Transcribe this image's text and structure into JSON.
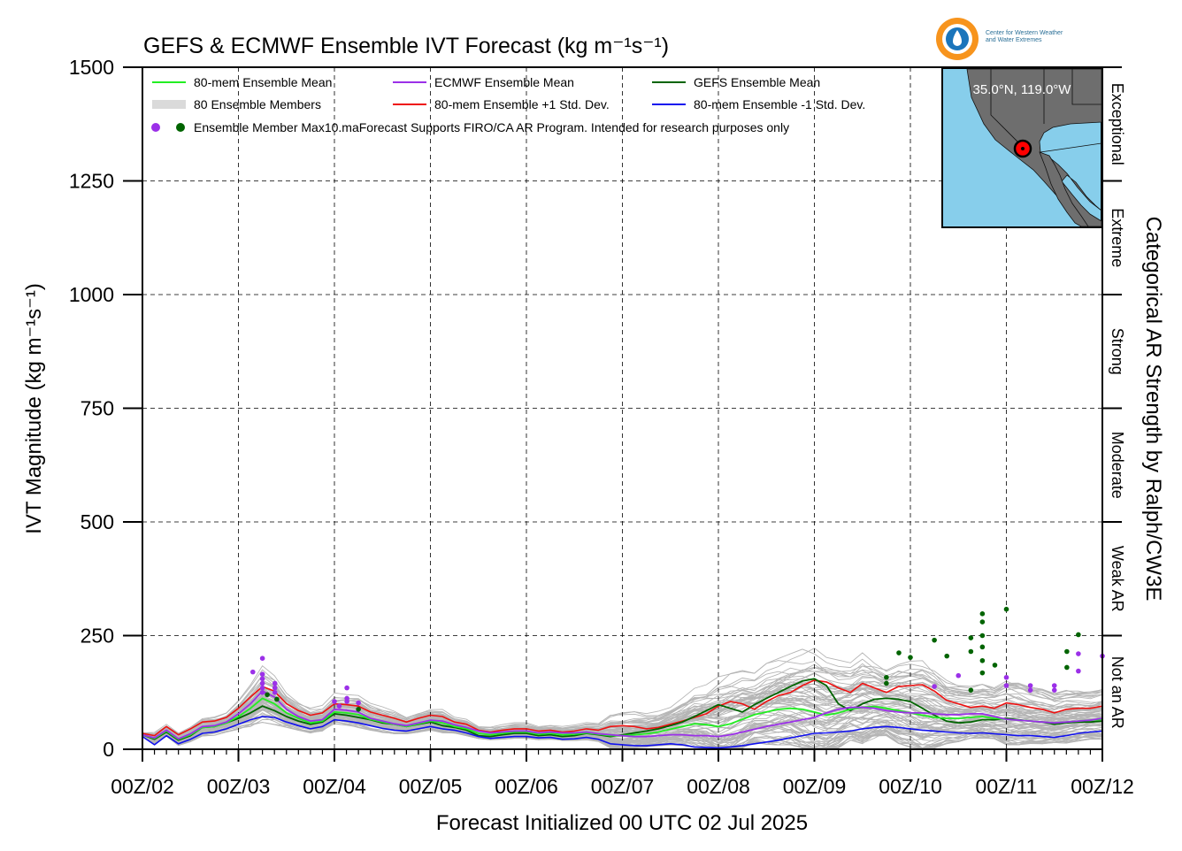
{
  "title": "GEFS & ECMWF Ensemble IVT Forecast (kg m⁻¹s⁻¹)",
  "logo": {
    "line1": "Center for Western Weather",
    "line2": "and Water Extremes"
  },
  "chart_data": {
    "type": "line",
    "title": "GEFS & ECMWF Ensemble IVT Forecast (kg m⁻¹s⁻¹)",
    "xlabel": "Forecast Initialized 00 UTC 02 Jul 2025",
    "ylabel": "IVT Magnitude (kg m⁻¹s⁻¹)",
    "right_label": "Categorical AR Strength by Ralph/CW3E",
    "ylim": [
      0,
      1500
    ],
    "xlim": [
      0,
      10
    ],
    "y_ticks": [
      0,
      250,
      500,
      750,
      1000,
      1250,
      1500
    ],
    "x_ticks": [
      "00Z/02",
      "00Z/03",
      "00Z/04",
      "00Z/05",
      "00Z/06",
      "00Z/07",
      "00Z/08",
      "00Z/09",
      "00Z/10",
      "00Z/11",
      "00Z/12"
    ],
    "grid": true,
    "categories": [
      {
        "label": "Not an AR",
        "from": 0,
        "to": 250
      },
      {
        "label": "Weak AR",
        "from": 250,
        "to": 500
      },
      {
        "label": "Moderate",
        "from": 500,
        "to": 750
      },
      {
        "label": "Strong",
        "from": 750,
        "to": 1000
      },
      {
        "label": "Extreme",
        "from": 1000,
        "to": 1250
      },
      {
        "label": "Exceptional",
        "from": 1250,
        "to": 1500
      }
    ],
    "legend": {
      "placement": "top-left",
      "entries": [
        {
          "label": "80-mem Ensemble Mean",
          "color": "#22ee22"
        },
        {
          "label": "ECMWF Ensemble Mean",
          "color": "#9b30e8"
        },
        {
          "label": "GEFS Ensemble Mean",
          "color": "#006400"
        },
        {
          "label": "80 Ensemble Members",
          "color": "#b5b5b5"
        },
        {
          "label": "80-mem Ensemble +1 Std. Dev.",
          "color": "#ee1111"
        },
        {
          "label": "80-mem Ensemble -1 Std. Dev.",
          "color": "#1010ee"
        }
      ],
      "marker_label": "Ensemble Member Max10.ma",
      "note": "Forecast Supports FIRO/CA AR Program. Intended for research purposes only"
    },
    "inset": {
      "label": "35.0°N, 119.0°W"
    },
    "x": [
      0,
      0.125,
      0.25,
      0.375,
      0.5,
      0.625,
      0.75,
      0.875,
      1,
      1.125,
      1.25,
      1.375,
      1.5,
      1.625,
      1.75,
      1.875,
      2,
      2.125,
      2.25,
      2.375,
      2.5,
      2.625,
      2.75,
      2.875,
      3,
      3.125,
      3.25,
      3.375,
      3.5,
      3.625,
      3.75,
      3.875,
      4,
      4.125,
      4.25,
      4.375,
      4.5,
      4.625,
      4.75,
      4.875,
      5,
      5.125,
      5.25,
      5.375,
      5.5,
      5.625,
      5.75,
      5.875,
      6,
      6.125,
      6.25,
      6.375,
      6.5,
      6.625,
      6.75,
      6.875,
      7,
      7.125,
      7.25,
      7.375,
      7.5,
      7.625,
      7.75,
      7.875,
      8,
      8.125,
      8.25,
      8.375,
      8.5,
      8.625,
      8.75,
      8.875,
      9,
      9.125,
      9.25,
      9.375,
      9.5,
      9.625,
      9.75,
      9.875,
      10
    ],
    "series": [
      {
        "name": "80-mem Ensemble +1 Std. Dev.",
        "color": "#ee1111",
        "width": 1.6,
        "values": [
          35,
          30,
          50,
          32,
          45,
          60,
          62,
          70,
          90,
          115,
          138,
          128,
          100,
          85,
          75,
          80,
          100,
          98,
          95,
          82,
          75,
          68,
          60,
          68,
          75,
          72,
          60,
          55,
          42,
          38,
          42,
          45,
          45,
          40,
          42,
          38,
          40,
          45,
          42,
          50,
          52,
          50,
          45,
          48,
          55,
          62,
          70,
          78,
          95,
          105,
          100,
          88,
          105,
          118,
          125,
          140,
          152,
          148,
          135,
          125,
          145,
          135,
          125,
          138,
          140,
          142,
          128,
          108,
          100,
          92,
          95,
          90,
          102,
          98,
          92,
          88,
          80,
          88,
          90,
          90,
          95
        ]
      },
      {
        "name": "GEFS Ensemble Mean",
        "color": "#006400",
        "width": 1.8,
        "values": [
          32,
          22,
          38,
          20,
          30,
          48,
          50,
          58,
          68,
          80,
          95,
          85,
          72,
          62,
          55,
          60,
          78,
          75,
          70,
          65,
          58,
          55,
          50,
          55,
          60,
          52,
          48,
          42,
          30,
          28,
          32,
          35,
          35,
          30,
          32,
          28,
          30,
          35,
          32,
          28,
          32,
          36,
          40,
          45,
          52,
          60,
          72,
          85,
          98,
          90,
          82,
          98,
          112,
          125,
          138,
          150,
          155,
          140,
          100,
          85,
          100,
          110,
          112,
          110,
          105,
          90,
          75,
          62,
          58,
          60,
          65,
          65,
          68,
          65,
          62,
          60,
          55,
          58,
          60,
          60,
          62
        ]
      },
      {
        "name": "80-mem Ensemble Mean",
        "color": "#22ee22",
        "width": 1.8,
        "values": [
          32,
          24,
          40,
          22,
          32,
          48,
          50,
          58,
          72,
          90,
          112,
          100,
          80,
          68,
          58,
          62,
          82,
          80,
          76,
          66,
          60,
          55,
          50,
          56,
          62,
          58,
          50,
          45,
          35,
          32,
          35,
          38,
          38,
          33,
          35,
          32,
          33,
          36,
          33,
          30,
          30,
          32,
          34,
          38,
          44,
          50,
          56,
          54,
          50,
          56,
          66,
          76,
          82,
          88,
          90,
          88,
          82,
          75,
          80,
          88,
          92,
          94,
          90,
          85,
          80,
          75,
          70,
          68,
          68,
          70,
          72,
          68,
          66,
          64,
          62,
          60,
          58,
          60,
          62,
          64,
          66
        ]
      },
      {
        "name": "ECMWF Ensemble Mean",
        "color": "#9b30e8",
        "width": 1.8,
        "values": [
          32,
          25,
          42,
          23,
          34,
          50,
          52,
          60,
          78,
          100,
          128,
          115,
          88,
          72,
          62,
          65,
          88,
          86,
          82,
          68,
          62,
          56,
          52,
          58,
          64,
          62,
          54,
          48,
          40,
          36,
          38,
          40,
          40,
          36,
          38,
          36,
          36,
          38,
          34,
          32,
          30,
          28,
          28,
          30,
          32,
          32,
          30,
          30,
          28,
          32,
          38,
          44,
          50,
          55,
          60,
          65,
          70,
          80,
          88,
          92,
          92,
          90,
          85,
          82,
          80,
          80,
          78,
          76,
          76,
          78,
          78,
          72,
          66,
          64,
          62,
          60,
          58,
          60,
          62,
          64,
          68
        ]
      },
      {
        "name": "80-mem Ensemble -1 Std. Dev.",
        "color": "#1010ee",
        "width": 1.6,
        "values": [
          28,
          10,
          30,
          12,
          22,
          35,
          38,
          45,
          55,
          65,
          72,
          70,
          60,
          52,
          45,
          50,
          65,
          62,
          58,
          52,
          46,
          42,
          40,
          45,
          50,
          45,
          42,
          36,
          28,
          24,
          26,
          28,
          28,
          25,
          26,
          22,
          23,
          26,
          22,
          12,
          10,
          8,
          8,
          10,
          12,
          10,
          5,
          4,
          3,
          5,
          8,
          12,
          16,
          20,
          25,
          30,
          35,
          36,
          38,
          40,
          45,
          48,
          50,
          48,
          45,
          42,
          40,
          38,
          36,
          35,
          36,
          34,
          32,
          30,
          30,
          28,
          26,
          30,
          35,
          38,
          40
        ]
      }
    ],
    "ensemble_members": {
      "name": "80 Ensemble Members",
      "color": "#b5b5b5",
      "count": 80
    },
    "max_markers": [
      {
        "x": 1.15,
        "y": 170,
        "color": "#9b30e8"
      },
      {
        "x": 1.25,
        "y": 200,
        "color": "#9b30e8"
      },
      {
        "x": 1.25,
        "y": 165,
        "color": "#9b30e8"
      },
      {
        "x": 1.25,
        "y": 155,
        "color": "#9b30e8"
      },
      {
        "x": 1.25,
        "y": 145,
        "color": "#9b30e8"
      },
      {
        "x": 1.25,
        "y": 135,
        "color": "#9b30e8"
      },
      {
        "x": 1.25,
        "y": 125,
        "color": "#9b30e8"
      },
      {
        "x": 1.3,
        "y": 120,
        "color": "#006400"
      },
      {
        "x": 1.38,
        "y": 145,
        "color": "#9b30e8"
      },
      {
        "x": 1.38,
        "y": 135,
        "color": "#9b30e8"
      },
      {
        "x": 1.38,
        "y": 125,
        "color": "#9b30e8"
      },
      {
        "x": 1.4,
        "y": 110,
        "color": "#006400"
      },
      {
        "x": 2.0,
        "y": 105,
        "color": "#9b30e8"
      },
      {
        "x": 2.05,
        "y": 95,
        "color": "#9b30e8"
      },
      {
        "x": 2.13,
        "y": 135,
        "color": "#9b30e8"
      },
      {
        "x": 2.13,
        "y": 112,
        "color": "#9b30e8"
      },
      {
        "x": 2.13,
        "y": 105,
        "color": "#9b30e8"
      },
      {
        "x": 2.25,
        "y": 102,
        "color": "#9b30e8"
      },
      {
        "x": 2.25,
        "y": 88,
        "color": "#006400"
      },
      {
        "x": 7.75,
        "y": 158,
        "color": "#006400"
      },
      {
        "x": 7.75,
        "y": 145,
        "color": "#006400"
      },
      {
        "x": 7.88,
        "y": 212,
        "color": "#006400"
      },
      {
        "x": 8.0,
        "y": 202,
        "color": "#006400"
      },
      {
        "x": 8.25,
        "y": 240,
        "color": "#006400"
      },
      {
        "x": 8.25,
        "y": 138,
        "color": "#9b30e8"
      },
      {
        "x": 8.38,
        "y": 205,
        "color": "#006400"
      },
      {
        "x": 8.5,
        "y": 162,
        "color": "#9b30e8"
      },
      {
        "x": 8.63,
        "y": 245,
        "color": "#006400"
      },
      {
        "x": 8.63,
        "y": 215,
        "color": "#006400"
      },
      {
        "x": 8.63,
        "y": 130,
        "color": "#006400"
      },
      {
        "x": 8.75,
        "y": 298,
        "color": "#006400"
      },
      {
        "x": 8.75,
        "y": 280,
        "color": "#006400"
      },
      {
        "x": 8.75,
        "y": 250,
        "color": "#006400"
      },
      {
        "x": 8.75,
        "y": 225,
        "color": "#006400"
      },
      {
        "x": 8.75,
        "y": 195,
        "color": "#006400"
      },
      {
        "x": 8.75,
        "y": 168,
        "color": "#006400"
      },
      {
        "x": 8.88,
        "y": 185,
        "color": "#006400"
      },
      {
        "x": 9.0,
        "y": 308,
        "color": "#006400"
      },
      {
        "x": 9.0,
        "y": 158,
        "color": "#9b30e8"
      },
      {
        "x": 9.0,
        "y": 140,
        "color": "#9b30e8"
      },
      {
        "x": 9.25,
        "y": 140,
        "color": "#9b30e8"
      },
      {
        "x": 9.25,
        "y": 130,
        "color": "#9b30e8"
      },
      {
        "x": 9.5,
        "y": 140,
        "color": "#9b30e8"
      },
      {
        "x": 9.5,
        "y": 130,
        "color": "#9b30e8"
      },
      {
        "x": 9.63,
        "y": 215,
        "color": "#006400"
      },
      {
        "x": 9.63,
        "y": 180,
        "color": "#006400"
      },
      {
        "x": 9.75,
        "y": 252,
        "color": "#006400"
      },
      {
        "x": 9.75,
        "y": 210,
        "color": "#9b30e8"
      },
      {
        "x": 9.75,
        "y": 172,
        "color": "#9b30e8"
      },
      {
        "x": 10.0,
        "y": 205,
        "color": "#9b30e8"
      }
    ]
  }
}
